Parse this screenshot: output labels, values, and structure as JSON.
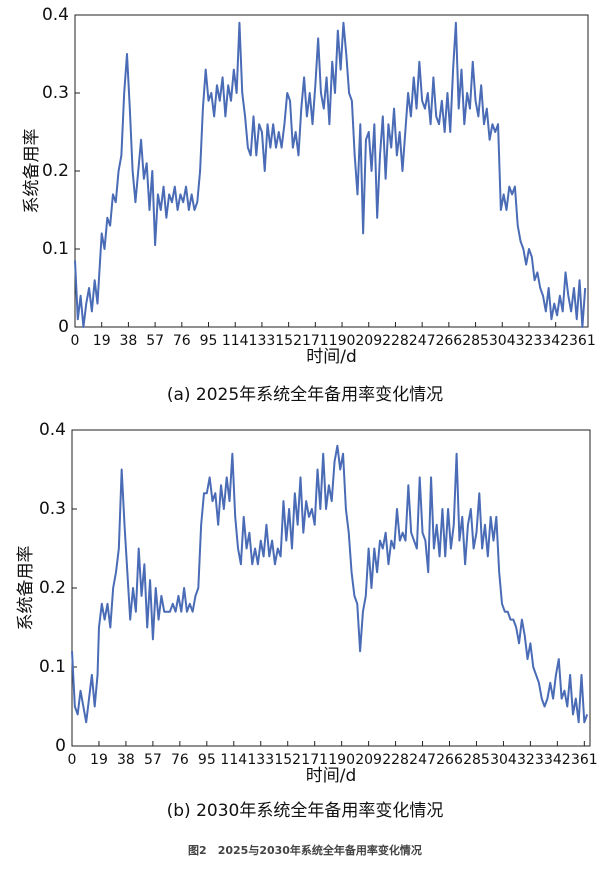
{
  "chart_data": [
    {
      "type": "line",
      "title": "(a) 2025年系统全年备用率变化情况",
      "xlabel": "时间/d",
      "ylabel": "系统备用率",
      "color": "#4a6bb5",
      "xlim": [
        0,
        365
      ],
      "ylim": [
        0,
        0.4
      ],
      "xticks": [
        0,
        19,
        38,
        57,
        76,
        95,
        114,
        133,
        152,
        171,
        190,
        209,
        228,
        247,
        266,
        285,
        304,
        323,
        342,
        361
      ],
      "yticks": [
        0,
        0.1,
        0.2,
        0.3,
        0.4
      ],
      "x": [
        0,
        2,
        4,
        6,
        8,
        10,
        12,
        14,
        16,
        18,
        19,
        21,
        23,
        25,
        27,
        29,
        31,
        33,
        35,
        37,
        39,
        41,
        43,
        45,
        47,
        49,
        51,
        53,
        55,
        57,
        59,
        61,
        63,
        65,
        67,
        69,
        71,
        73,
        75,
        77,
        79,
        81,
        83,
        85,
        87,
        89,
        91,
        93,
        95,
        97,
        99,
        101,
        103,
        105,
        107,
        109,
        111,
        113,
        115,
        117,
        119,
        121,
        123,
        125,
        127,
        129,
        131,
        133,
        135,
        137,
        139,
        141,
        143,
        145,
        147,
        149,
        151,
        153,
        155,
        157,
        159,
        161,
        163,
        165,
        167,
        169,
        171,
        173,
        175,
        177,
        179,
        181,
        183,
        185,
        187,
        189,
        191,
        193,
        195,
        197,
        199,
        201,
        203,
        205,
        207,
        209,
        211,
        213,
        215,
        217,
        219,
        221,
        223,
        225,
        227,
        229,
        231,
        233,
        235,
        237,
        239,
        241,
        243,
        245,
        247,
        249,
        251,
        253,
        255,
        257,
        259,
        261,
        263,
        265,
        267,
        269,
        271,
        273,
        275,
        277,
        279,
        281,
        283,
        285,
        287,
        289,
        291,
        293,
        295,
        297,
        299,
        301,
        303,
        305,
        307,
        309,
        311,
        313,
        315,
        317,
        319,
        321,
        323,
        325,
        327,
        329,
        331,
        333,
        335,
        337,
        339,
        341,
        343,
        345,
        347,
        349,
        351,
        353,
        355,
        357,
        359,
        361,
        363
      ],
      "values": [
        0.085,
        0.01,
        0.04,
        0.0,
        0.03,
        0.05,
        0.02,
        0.06,
        0.03,
        0.09,
        0.12,
        0.1,
        0.14,
        0.13,
        0.17,
        0.16,
        0.2,
        0.22,
        0.3,
        0.35,
        0.28,
        0.2,
        0.16,
        0.2,
        0.24,
        0.19,
        0.21,
        0.15,
        0.2,
        0.105,
        0.17,
        0.15,
        0.18,
        0.14,
        0.17,
        0.16,
        0.18,
        0.15,
        0.17,
        0.16,
        0.18,
        0.15,
        0.17,
        0.15,
        0.16,
        0.2,
        0.28,
        0.33,
        0.29,
        0.3,
        0.27,
        0.31,
        0.29,
        0.32,
        0.27,
        0.31,
        0.29,
        0.33,
        0.3,
        0.39,
        0.3,
        0.27,
        0.23,
        0.22,
        0.27,
        0.22,
        0.26,
        0.25,
        0.2,
        0.26,
        0.23,
        0.26,
        0.23,
        0.25,
        0.23,
        0.26,
        0.3,
        0.29,
        0.23,
        0.25,
        0.22,
        0.28,
        0.32,
        0.27,
        0.3,
        0.26,
        0.31,
        0.37,
        0.3,
        0.28,
        0.32,
        0.26,
        0.34,
        0.3,
        0.38,
        0.33,
        0.39,
        0.35,
        0.3,
        0.29,
        0.22,
        0.17,
        0.26,
        0.12,
        0.24,
        0.25,
        0.2,
        0.26,
        0.14,
        0.22,
        0.27,
        0.19,
        0.26,
        0.23,
        0.28,
        0.22,
        0.25,
        0.2,
        0.25,
        0.3,
        0.27,
        0.32,
        0.28,
        0.34,
        0.29,
        0.28,
        0.3,
        0.26,
        0.32,
        0.27,
        0.26,
        0.29,
        0.25,
        0.3,
        0.25,
        0.33,
        0.39,
        0.28,
        0.33,
        0.26,
        0.3,
        0.28,
        0.34,
        0.29,
        0.27,
        0.31,
        0.26,
        0.28,
        0.24,
        0.26,
        0.25,
        0.26,
        0.15,
        0.17,
        0.15,
        0.18,
        0.17,
        0.18,
        0.13,
        0.11,
        0.1,
        0.08,
        0.1,
        0.09,
        0.06,
        0.07,
        0.05,
        0.04,
        0.02,
        0.05,
        0.01,
        0.03,
        0.015,
        0.04,
        0.02,
        0.07,
        0.04,
        0.02,
        0.05,
        0.01,
        0.06,
        0.0,
        0.05
      ]
    },
    {
      "type": "line",
      "title": "(b) 2030年系统全年备用率变化情况",
      "xlabel": "时间/d",
      "ylabel": "系统备用率",
      "color": "#4a6bb5",
      "xlim": [
        0,
        365
      ],
      "ylim": [
        0,
        0.4
      ],
      "xticks": [
        0,
        19,
        38,
        57,
        76,
        95,
        114,
        133,
        152,
        171,
        190,
        209,
        228,
        247,
        266,
        285,
        304,
        323,
        342,
        361
      ],
      "yticks": [
        0,
        0.1,
        0.2,
        0.3,
        0.4
      ],
      "x": [
        0,
        2,
        4,
        6,
        8,
        10,
        12,
        14,
        16,
        18,
        19,
        21,
        23,
        25,
        27,
        29,
        31,
        33,
        35,
        37,
        39,
        41,
        43,
        45,
        47,
        49,
        51,
        53,
        55,
        57,
        59,
        61,
        63,
        65,
        67,
        69,
        71,
        73,
        75,
        77,
        79,
        81,
        83,
        85,
        87,
        89,
        91,
        93,
        95,
        97,
        99,
        101,
        103,
        105,
        107,
        109,
        111,
        113,
        115,
        117,
        119,
        121,
        123,
        125,
        127,
        129,
        131,
        133,
        135,
        137,
        139,
        141,
        143,
        145,
        147,
        149,
        151,
        153,
        155,
        157,
        159,
        161,
        163,
        165,
        167,
        169,
        171,
        173,
        175,
        177,
        179,
        181,
        183,
        185,
        187,
        189,
        191,
        193,
        195,
        197,
        199,
        201,
        203,
        205,
        207,
        209,
        211,
        213,
        215,
        217,
        219,
        221,
        223,
        225,
        227,
        229,
        231,
        233,
        235,
        237,
        239,
        241,
        243,
        245,
        247,
        249,
        251,
        253,
        255,
        257,
        259,
        261,
        263,
        265,
        267,
        269,
        271,
        273,
        275,
        277,
        279,
        281,
        283,
        285,
        287,
        289,
        291,
        293,
        295,
        297,
        299,
        301,
        303,
        305,
        307,
        309,
        311,
        313,
        315,
        317,
        319,
        321,
        323,
        325,
        327,
        329,
        331,
        333,
        335,
        337,
        339,
        341,
        343,
        345,
        347,
        349,
        351,
        353,
        355,
        357,
        359,
        361,
        363
      ],
      "values": [
        0.12,
        0.05,
        0.04,
        0.07,
        0.05,
        0.03,
        0.06,
        0.09,
        0.05,
        0.09,
        0.15,
        0.18,
        0.16,
        0.18,
        0.15,
        0.2,
        0.22,
        0.25,
        0.35,
        0.28,
        0.22,
        0.16,
        0.2,
        0.17,
        0.25,
        0.19,
        0.23,
        0.15,
        0.21,
        0.135,
        0.2,
        0.16,
        0.19,
        0.17,
        0.17,
        0.17,
        0.18,
        0.17,
        0.19,
        0.17,
        0.2,
        0.17,
        0.18,
        0.17,
        0.19,
        0.2,
        0.28,
        0.32,
        0.32,
        0.34,
        0.31,
        0.32,
        0.28,
        0.33,
        0.3,
        0.34,
        0.31,
        0.37,
        0.29,
        0.25,
        0.23,
        0.29,
        0.25,
        0.27,
        0.23,
        0.25,
        0.23,
        0.26,
        0.24,
        0.28,
        0.24,
        0.26,
        0.23,
        0.25,
        0.24,
        0.31,
        0.26,
        0.3,
        0.25,
        0.32,
        0.28,
        0.34,
        0.27,
        0.31,
        0.29,
        0.3,
        0.28,
        0.35,
        0.3,
        0.37,
        0.3,
        0.33,
        0.31,
        0.36,
        0.38,
        0.35,
        0.37,
        0.3,
        0.27,
        0.22,
        0.19,
        0.18,
        0.12,
        0.17,
        0.19,
        0.25,
        0.2,
        0.25,
        0.22,
        0.26,
        0.25,
        0.27,
        0.23,
        0.26,
        0.25,
        0.3,
        0.26,
        0.27,
        0.26,
        0.33,
        0.27,
        0.26,
        0.25,
        0.34,
        0.27,
        0.26,
        0.22,
        0.34,
        0.25,
        0.28,
        0.24,
        0.3,
        0.24,
        0.3,
        0.25,
        0.28,
        0.37,
        0.26,
        0.29,
        0.23,
        0.28,
        0.3,
        0.25,
        0.27,
        0.32,
        0.25,
        0.28,
        0.24,
        0.29,
        0.26,
        0.29,
        0.22,
        0.18,
        0.17,
        0.17,
        0.16,
        0.16,
        0.15,
        0.13,
        0.16,
        0.14,
        0.11,
        0.13,
        0.1,
        0.09,
        0.08,
        0.06,
        0.05,
        0.06,
        0.08,
        0.06,
        0.09,
        0.11,
        0.06,
        0.07,
        0.05,
        0.09,
        0.04,
        0.06,
        0.03,
        0.09,
        0.03,
        0.04
      ]
    }
  ],
  "caption": "图2　2025与2030年系统全年备用率变化情况"
}
